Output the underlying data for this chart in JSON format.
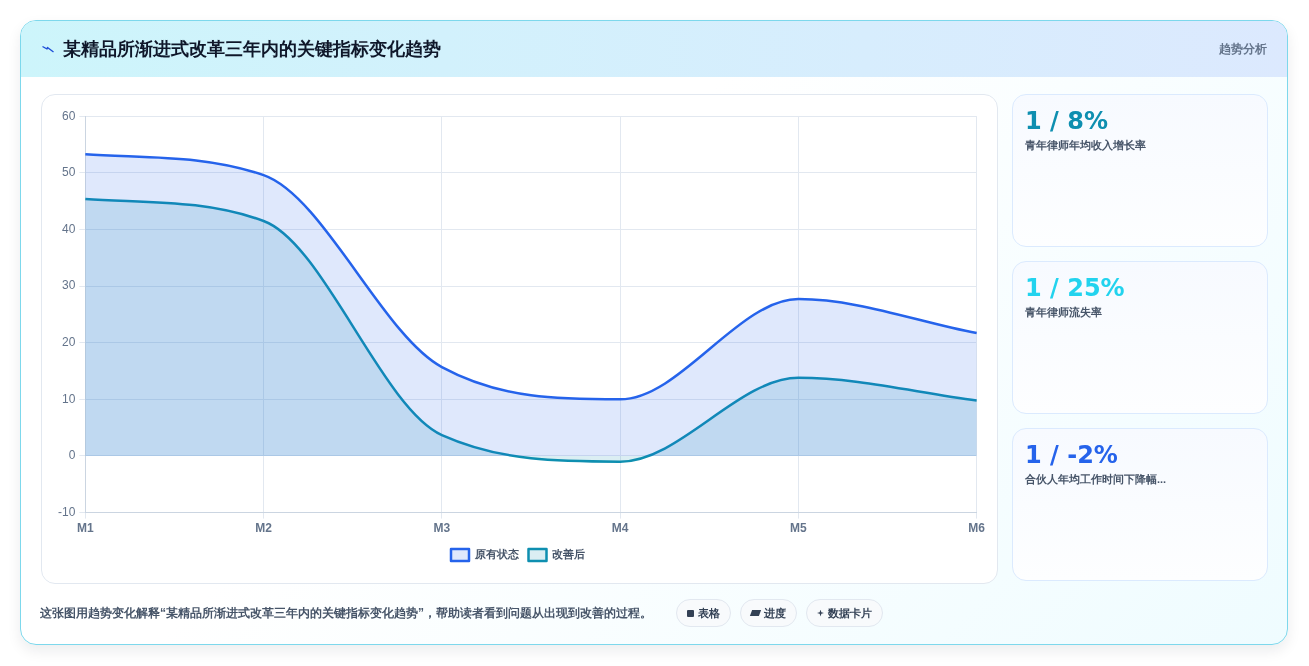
{
  "chart_data": [
    {
      "type": "area",
      "title": "某精品所渐进式改革三年内的关键指标变化趋势",
      "categories": [
        "M1",
        "M2",
        "M3",
        "M4",
        "M5",
        "M6"
      ],
      "series": [
        {
          "name": "原有状态",
          "color": "#2563eb",
          "type": "area",
          "values": [
            53.3,
            49.6,
            15.7,
            10.0,
            27.7,
            21.7
          ]
        },
        {
          "name": "改善后",
          "color": "#0e8fb0",
          "type": "area",
          "values": [
            45.4,
            41.5,
            3.7,
            -1.0,
            13.8,
            9.8
          ]
        }
      ],
      "ylim": [
        -10,
        60
      ],
      "yticks": [
        -10,
        0,
        10,
        20,
        30,
        40,
        50,
        60
      ],
      "grid": true,
      "legend": "bottom",
      "marker": "none",
      "line_style": "solid",
      "annotations": [
        "趋势分析",
        "这张图用趋势变化解释“某精品所渐进式改革三年内的关键指标变化趋势”，帮助读者看到问题从出现到改善的过程。",
        "表格",
        "进度",
        "数据卡片"
      ]
    },
    {
      "type": "other",
      "annotations": [
        "1 / 8%",
        "青年律师年均收入增长率"
      ]
    },
    {
      "type": "other",
      "annotations": [
        "1 / 25%",
        "青年律师流失率"
      ]
    },
    {
      "type": "other",
      "annotations": [
        "1 / -2%",
        "合伙人年均工作时间下降幅..."
      ]
    }
  ]
}
